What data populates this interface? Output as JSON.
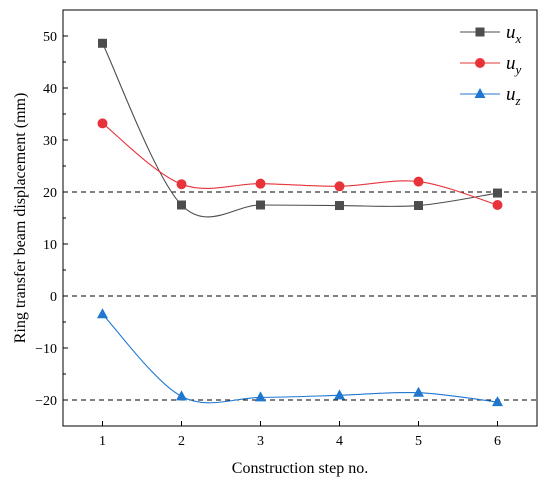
{
  "chart_data": {
    "type": "line",
    "xlabel": "Construction step no.",
    "ylabel": "Ring transfer beam displacement (mm)",
    "x": [
      1,
      2,
      3,
      4,
      5,
      6
    ],
    "xlim": [
      0.5,
      6.5
    ],
    "ylim": [
      -25,
      55
    ],
    "xticks": [
      1,
      2,
      3,
      4,
      5,
      6
    ],
    "yticks": [
      -20,
      -10,
      0,
      10,
      20,
      30,
      40,
      50
    ],
    "reference_lines": [
      20,
      0,
      -20
    ],
    "legend_position": "top-right",
    "series": [
      {
        "name": "u",
        "subscript": "x",
        "color": "#4d4d4d",
        "marker": "square",
        "values": [
          48.6,
          17.5,
          17.5,
          17.4,
          17.4,
          19.8
        ]
      },
      {
        "name": "u",
        "subscript": "y",
        "color": "#e8333a",
        "marker": "circle",
        "values": [
          33.2,
          21.5,
          21.6,
          21.1,
          22.0,
          17.5
        ]
      },
      {
        "name": "u",
        "subscript": "z",
        "color": "#1f77d0",
        "marker": "triangle",
        "values": [
          -3.5,
          -19.3,
          -19.5,
          -19.1,
          -18.6,
          -20.4
        ]
      }
    ]
  }
}
